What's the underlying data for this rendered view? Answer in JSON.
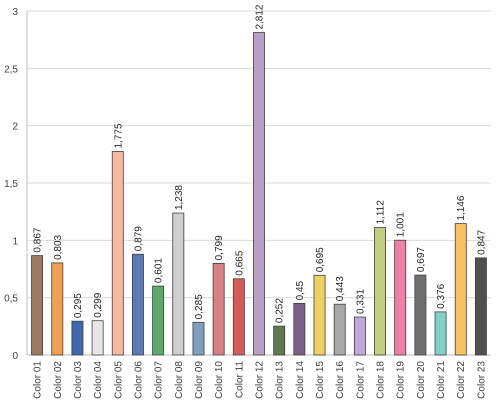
{
  "chart_data": {
    "type": "bar",
    "categories": [
      "Color 01",
      "Color 02",
      "Color 03",
      "Color 04",
      "Color 05",
      "Color 06",
      "Color 07",
      "Color 08",
      "Color 09",
      "Color 10",
      "Color 11",
      "Color 12",
      "Color 13",
      "Color 14",
      "Color 15",
      "Color 16",
      "Color 17",
      "Color 18",
      "Color 19",
      "Color 20",
      "Color 21",
      "Color 22",
      "Color 23"
    ],
    "values": [
      0.867,
      0.803,
      0.295,
      0.299,
      1.775,
      0.879,
      0.601,
      1.238,
      0.285,
      0.799,
      0.665,
      2.812,
      0.252,
      0.45,
      0.695,
      0.443,
      0.331,
      1.112,
      1.001,
      0.697,
      0.376,
      1.146,
      0.847
    ],
    "value_labels": [
      "0,867",
      "0,803",
      "0,295",
      "0,299",
      "1,775",
      "0,879",
      "0,601",
      "1,238",
      "0,285",
      "0,799",
      "0,665",
      "2,812",
      "0,252",
      "0,45",
      "0,695",
      "0,443",
      "0,331",
      "1,112",
      "1,001",
      "0,697",
      "0,376",
      "1,146",
      "0,847"
    ],
    "bar_colors": [
      "#9b7a60",
      "#f0a04f",
      "#3f66b0",
      "#e6e6e6",
      "#f9b7a0",
      "#5a7ab8",
      "#5aab6a",
      "#cfcfcf",
      "#7f9fbf",
      "#d98080",
      "#d65a5a",
      "#b8a0c8",
      "#5f7a4f",
      "#7a6088",
      "#f0d060",
      "#a8a8a8",
      "#c0a8d8",
      "#c0d080",
      "#f080a8",
      "#707070",
      "#80d0c8",
      "#f8c060",
      "#505050"
    ],
    "y_ticks": [
      0,
      0.5,
      1,
      1.5,
      2,
      2.5,
      3
    ],
    "y_tick_labels": [
      "0",
      "0,5",
      "1",
      "1,5",
      "2",
      "2,5",
      "3"
    ],
    "ylim": [
      0,
      3
    ],
    "title": "",
    "xlabel": "",
    "ylabel": "",
    "grid": true,
    "legend": "none"
  }
}
